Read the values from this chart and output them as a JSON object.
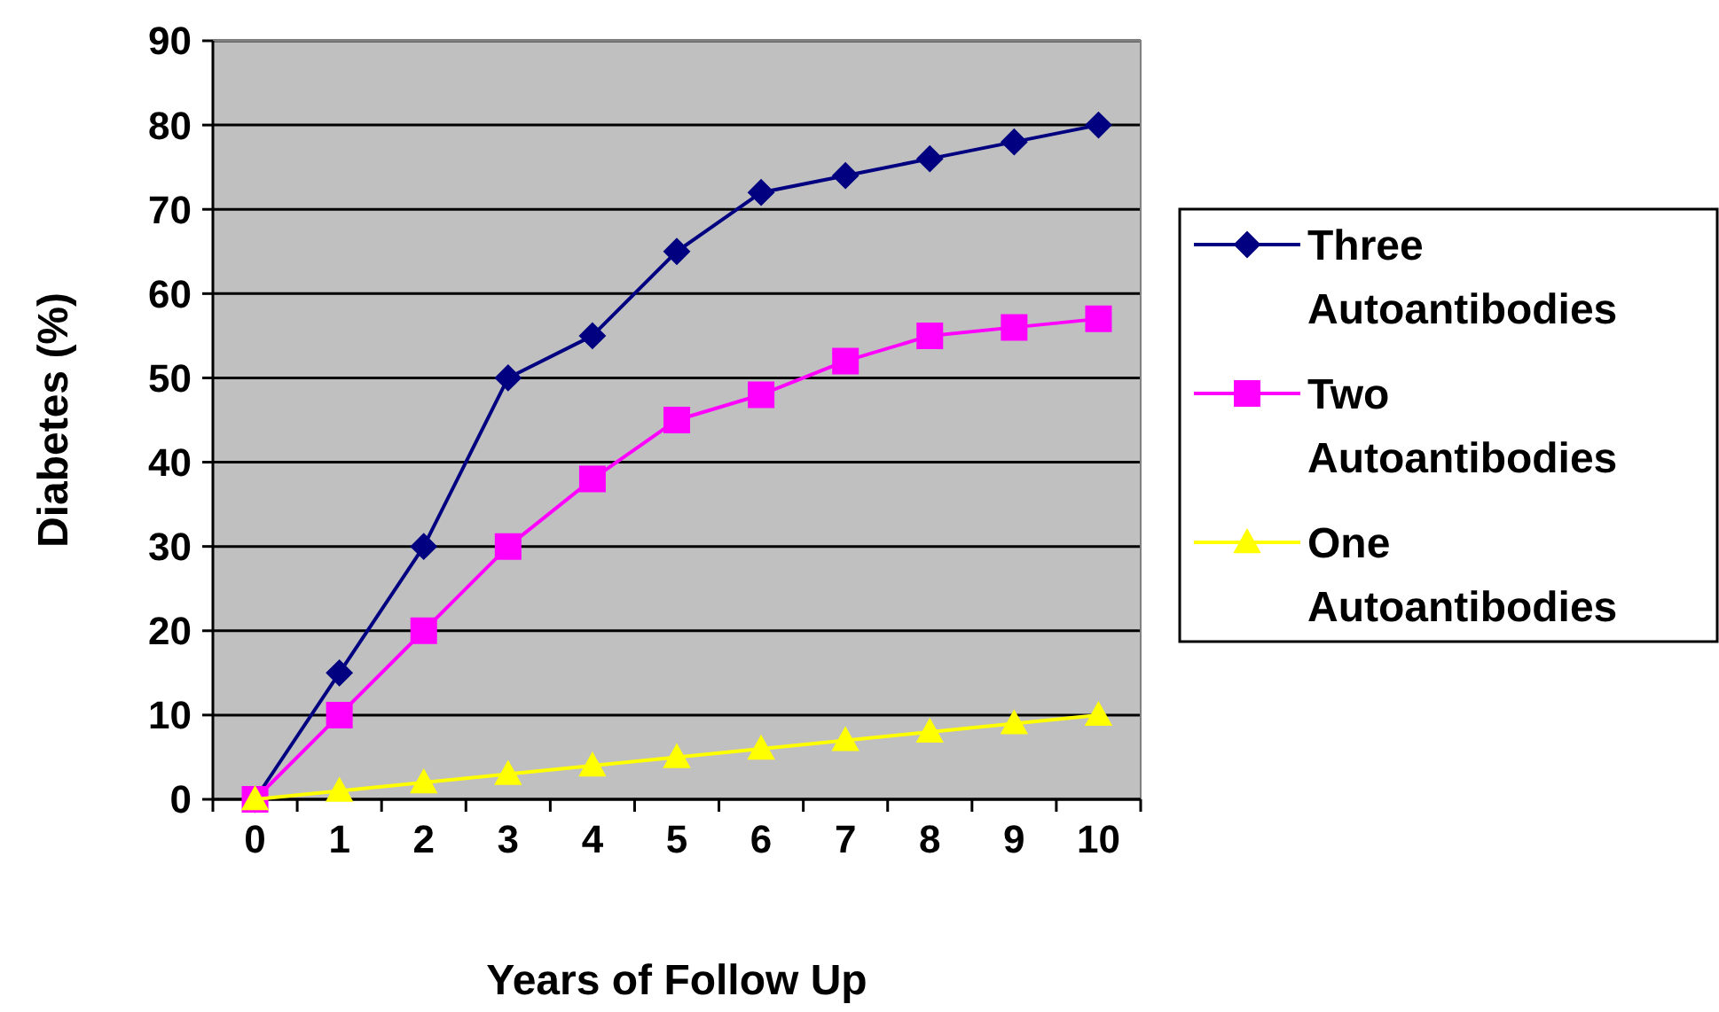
{
  "chart_data": {
    "type": "line",
    "xlabel": "Years of Follow Up",
    "ylabel": "Diabetes (%)",
    "categories": [
      "0",
      "1",
      "2",
      "3",
      "4",
      "5",
      "6",
      "7",
      "8",
      "9",
      "10"
    ],
    "series": [
      {
        "name": "Three Autoantibodies",
        "color": "#000080",
        "marker": "diamond",
        "values": [
          0,
          15,
          30,
          50,
          55,
          65,
          72,
          74,
          76,
          78,
          80
        ]
      },
      {
        "name": "Two Autoantibodies",
        "color": "#ff00ff",
        "marker": "square",
        "values": [
          0,
          10,
          20,
          30,
          38,
          45,
          48,
          52,
          55,
          56,
          57
        ]
      },
      {
        "name": "One Autoantibodies",
        "color": "#ffff00",
        "marker": "triangle",
        "values": [
          0,
          1,
          2,
          3,
          4,
          5,
          6,
          7,
          8,
          9,
          10
        ]
      }
    ],
    "ylim": [
      0,
      90
    ],
    "yticks": [
      0,
      10,
      20,
      30,
      40,
      50,
      60,
      70,
      80,
      90
    ],
    "grid": "y",
    "legend": "right"
  }
}
